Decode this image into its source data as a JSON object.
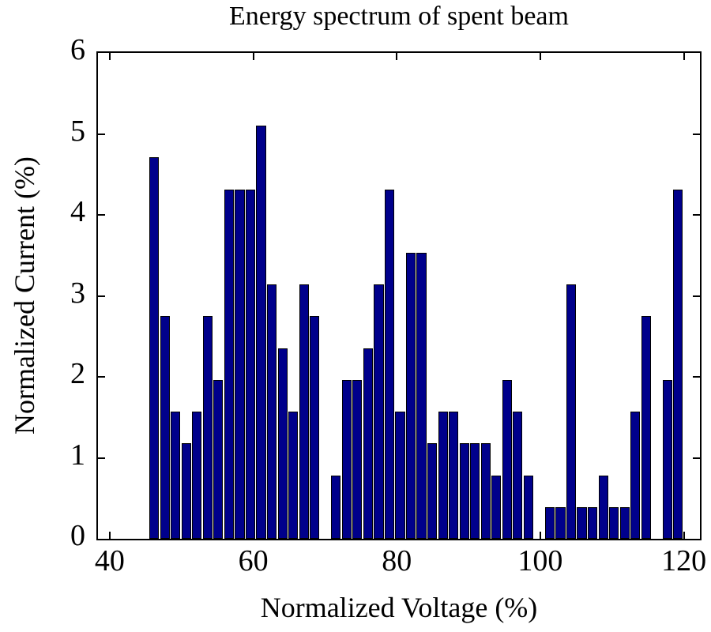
{
  "chart_data": {
    "type": "bar",
    "title": "Energy spectrum of spent beam",
    "xlabel": "Normalized Voltage (%)",
    "ylabel": "Normalized Current (%)",
    "xlim": [
      38.36,
      122.25
    ],
    "ylim": [
      0,
      6
    ],
    "x_ticks": [
      40,
      60,
      80,
      100,
      120
    ],
    "y_ticks": [
      0,
      1,
      2,
      3,
      4,
      5,
      6
    ],
    "grid": false,
    "legend": false,
    "bar_width": 1.34,
    "colors": {
      "bar_fill": "#00008B",
      "bar_edge": "#000000",
      "axis": "#000000",
      "background": "#FFFFFF"
    },
    "centers": [
      46.2,
      47.69,
      49.18,
      50.67,
      52.16,
      53.65,
      55.14,
      56.63,
      58.12,
      59.61,
      61.1,
      62.59,
      64.08,
      65.57,
      67.06,
      68.55,
      70.04,
      71.53,
      73.02,
      74.51,
      76.0,
      77.49,
      78.98,
      80.47,
      81.96,
      83.45,
      84.94,
      86.43,
      87.92,
      89.41,
      90.9,
      92.39,
      93.88,
      95.37,
      96.86,
      98.35,
      99.84,
      101.33,
      102.82,
      104.31,
      105.8,
      107.29,
      108.78,
      110.27,
      111.76,
      113.25,
      114.74,
      116.23,
      117.72,
      119.21
    ],
    "values": [
      4.71,
      2.75,
      1.57,
      1.18,
      1.57,
      2.75,
      1.96,
      4.31,
      4.31,
      4.31,
      5.1,
      3.14,
      2.35,
      1.57,
      3.14,
      2.75,
      0,
      0.78,
      1.96,
      1.96,
      2.35,
      3.14,
      4.31,
      1.57,
      3.53,
      3.53,
      1.18,
      1.57,
      1.57,
      1.18,
      1.18,
      1.18,
      0.78,
      1.96,
      1.57,
      0.78,
      0,
      0.39,
      0.39,
      3.14,
      0.39,
      0.39,
      0.78,
      0.39,
      0.39,
      1.57,
      2.75,
      0,
      1.96,
      4.31
    ]
  }
}
